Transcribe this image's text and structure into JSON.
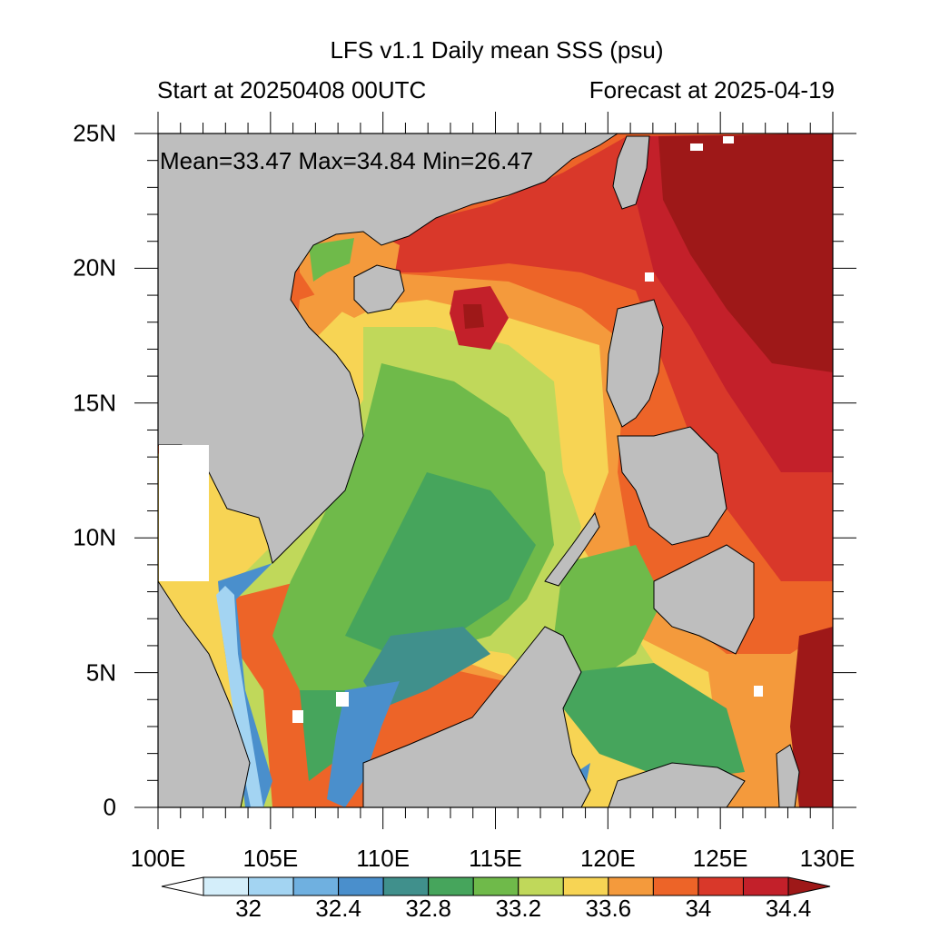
{
  "title": "LFS v1.1 Daily mean SSS (psu)",
  "subtitle_left": "Start at 20250408 00UTC",
  "subtitle_right": "Forecast at 2025-04-19",
  "stats": "Mean=33.47  Max=34.84  Min=26.47",
  "map": {
    "lon_range": [
      100,
      130
    ],
    "lat_range": [
      0,
      25
    ],
    "lat_ticks": [
      "0",
      "5N",
      "10N",
      "15N",
      "20N",
      "25N"
    ],
    "lon_ticks": [
      "100E",
      "105E",
      "110E",
      "115E",
      "120E",
      "125E",
      "130E"
    ],
    "land_color": "#bebebe",
    "missing_color": "#ffffff"
  },
  "colorbar": {
    "labels": [
      "32",
      "32.4",
      "32.8",
      "33.2",
      "33.6",
      "34",
      "34.4"
    ],
    "colors": [
      "#ffffff",
      "#d4eefa",
      "#a3d4f2",
      "#6fb0e0",
      "#4a8fcc",
      "#40908c",
      "#46a55c",
      "#6fba4a",
      "#c0d85a",
      "#f7d454",
      "#f49a3c",
      "#ed6428",
      "#d9382a",
      "#c3202a",
      "#9e1818"
    ]
  }
}
